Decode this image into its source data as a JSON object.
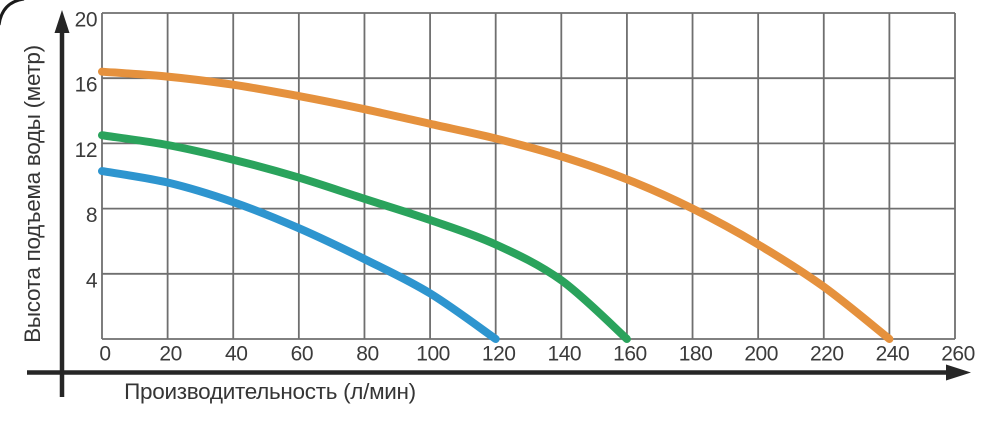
{
  "chart_data": {
    "type": "line",
    "title": "",
    "xlabel": "Производительность (л/мин)",
    "ylabel": "Высота подъема воды (метр)",
    "xlim": [
      0,
      260
    ],
    "ylim": [
      0,
      20
    ],
    "xticks": [
      0,
      20,
      40,
      60,
      80,
      100,
      120,
      140,
      160,
      180,
      200,
      220,
      240,
      260
    ],
    "yticks": [
      20,
      16,
      12,
      8,
      4
    ],
    "grid": true,
    "legend": "none",
    "series": [
      {
        "name": "blue-curve",
        "color": "#2E95CF",
        "x": [
          0,
          20,
          40,
          60,
          80,
          100,
          120
        ],
        "y": [
          10.3,
          9.6,
          8.4,
          6.8,
          4.9,
          2.8,
          0
        ]
      },
      {
        "name": "green-curve",
        "color": "#2AA35C",
        "x": [
          0,
          20,
          40,
          60,
          80,
          100,
          120,
          140,
          160
        ],
        "y": [
          12.5,
          11.9,
          11.0,
          9.9,
          8.6,
          7.3,
          5.8,
          3.6,
          0
        ]
      },
      {
        "name": "orange-curve",
        "color": "#E5913D",
        "x": [
          0,
          20,
          40,
          60,
          80,
          100,
          120,
          140,
          160,
          180,
          200,
          220,
          240
        ],
        "y": [
          16.4,
          16.1,
          15.6,
          14.9,
          14.1,
          13.2,
          12.3,
          11.2,
          9.8,
          8.0,
          5.8,
          3.2,
          0
        ]
      }
    ],
    "colors": {
      "grid": "#6F6F6F",
      "axis": "#262626",
      "text": "#3B3B3B",
      "background": "#FFFFFF"
    }
  }
}
